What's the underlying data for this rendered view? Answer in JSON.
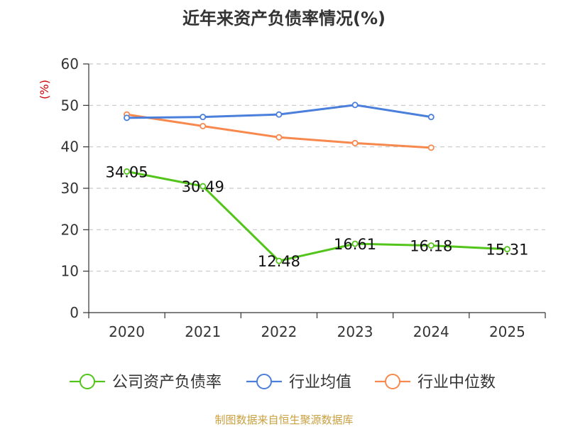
{
  "chart_data": {
    "type": "line",
    "title": "近年来资产负债率情况(%)",
    "ylabel": "(%)",
    "categories": [
      "2020",
      "2021",
      "2022",
      "2023",
      "2024",
      "2025"
    ],
    "ylim": [
      0,
      60
    ],
    "yticks": [
      0,
      10,
      20,
      30,
      40,
      50,
      60
    ],
    "grid": true,
    "legend_position": "bottom",
    "series": [
      {
        "name": "公司资产负债率",
        "color": "#52c41a",
        "values": [
          34.05,
          30.49,
          12.48,
          16.61,
          16.18,
          15.31
        ],
        "labels": [
          "34.05",
          "30.49",
          "12.48",
          "16.61",
          "16.18",
          "15.31"
        ]
      },
      {
        "name": "行业均值",
        "color": "#4a7fdb",
        "values": [
          47.0,
          47.2,
          47.8,
          50.1,
          47.2,
          null
        ]
      },
      {
        "name": "行业中位数",
        "color": "#f7894e",
        "values": [
          47.8,
          45.0,
          42.3,
          40.9,
          39.8,
          null
        ]
      }
    ]
  },
  "source_note": "制图数据来自恒生聚源数据库"
}
